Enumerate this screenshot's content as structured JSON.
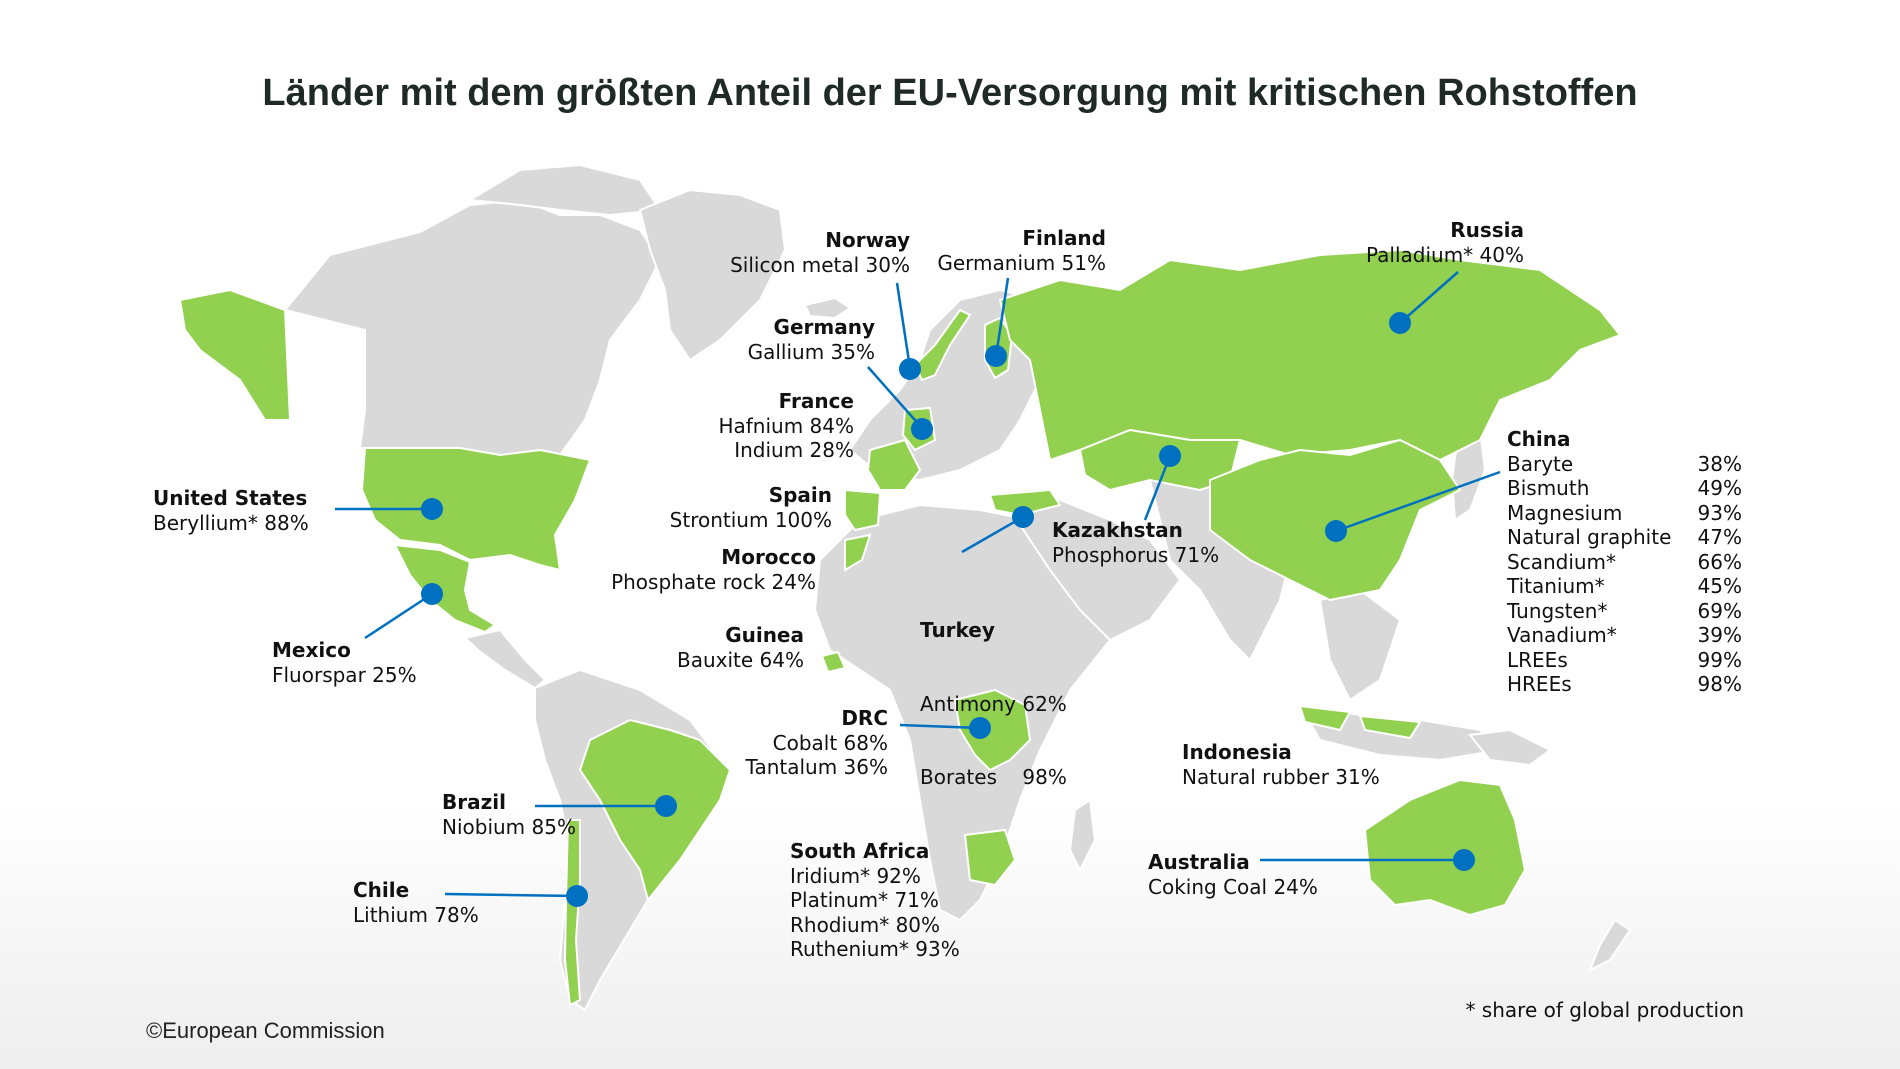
{
  "title": "Länder mit dem größten Anteil der EU-Versorgung mit kritischen Rohstoffen",
  "colors": {
    "highlight": "#92d050",
    "land": "#d9d9d9",
    "marker": "#0070c0"
  },
  "countries": [
    {
      "id": "norway",
      "name": "Norway",
      "lines": [
        "Silicon metal 30%"
      ]
    },
    {
      "id": "finland",
      "name": "Finland",
      "lines": [
        "Germanium 51%"
      ]
    },
    {
      "id": "russia",
      "name": "Russia",
      "lines": [
        "Palladium* 40%"
      ]
    },
    {
      "id": "germany",
      "name": "Germany",
      "lines": [
        "Gallium 35%"
      ]
    },
    {
      "id": "france",
      "name": "France",
      "lines": [
        "Hafnium 84%",
        "Indium 28%"
      ]
    },
    {
      "id": "united-states",
      "name": "United States",
      "lines": [
        "Beryllium* 88%"
      ]
    },
    {
      "id": "spain",
      "name": "Spain",
      "lines": [
        "Strontium 100%"
      ]
    },
    {
      "id": "kazakhstan",
      "name": "Kazakhstan",
      "lines": [
        "Phosphorus 71%"
      ]
    },
    {
      "id": "morocco",
      "name": "Morocco",
      "lines": [
        "Phosphate rock 24%"
      ]
    },
    {
      "id": "turkey",
      "name": "Turkey",
      "lines": [
        "Antimony 62%",
        "Borates    98%"
      ]
    },
    {
      "id": "mexico",
      "name": "Mexico",
      "lines": [
        "Fluorspar 25%"
      ]
    },
    {
      "id": "guinea",
      "name": "Guinea",
      "lines": [
        "Bauxite 64%"
      ]
    },
    {
      "id": "drc",
      "name": "DRC",
      "lines": [
        "Cobalt 68%",
        "Tantalum 36%"
      ]
    },
    {
      "id": "indonesia",
      "name": "Indonesia",
      "lines": [
        "Natural rubber 31%"
      ]
    },
    {
      "id": "brazil",
      "name": "Brazil",
      "lines": [
        "Niobium 85%"
      ]
    },
    {
      "id": "south-africa",
      "name": "South Africa",
      "lines": [
        "Iridium* 92%",
        "Platinum* 71%",
        "Rhodium* 80%",
        "Ruthenium* 93%"
      ]
    },
    {
      "id": "australia",
      "name": "Australia",
      "lines": [
        "Coking Coal 24%"
      ]
    },
    {
      "id": "chile",
      "name": "Chile",
      "lines": [
        "Lithium 78%"
      ]
    }
  ],
  "china": {
    "name": "China",
    "materials": [
      {
        "name": "Baryte",
        "value": "38%"
      },
      {
        "name": "Bismuth",
        "value": "49%"
      },
      {
        "name": "Magnesium",
        "value": "93%"
      },
      {
        "name": "Natural graphite",
        "value": "47%"
      },
      {
        "name": "Scandium*",
        "value": "66%"
      },
      {
        "name": "Titanium*",
        "value": "45%"
      },
      {
        "name": "Tungsten*",
        "value": "69%"
      },
      {
        "name": "Vanadium*",
        "value": "39%"
      },
      {
        "name": "LREEs",
        "value": "99%"
      },
      {
        "name": "HREEs",
        "value": "98%"
      }
    ]
  },
  "footnote": "* share of global production",
  "copyright": "©European Commission"
}
